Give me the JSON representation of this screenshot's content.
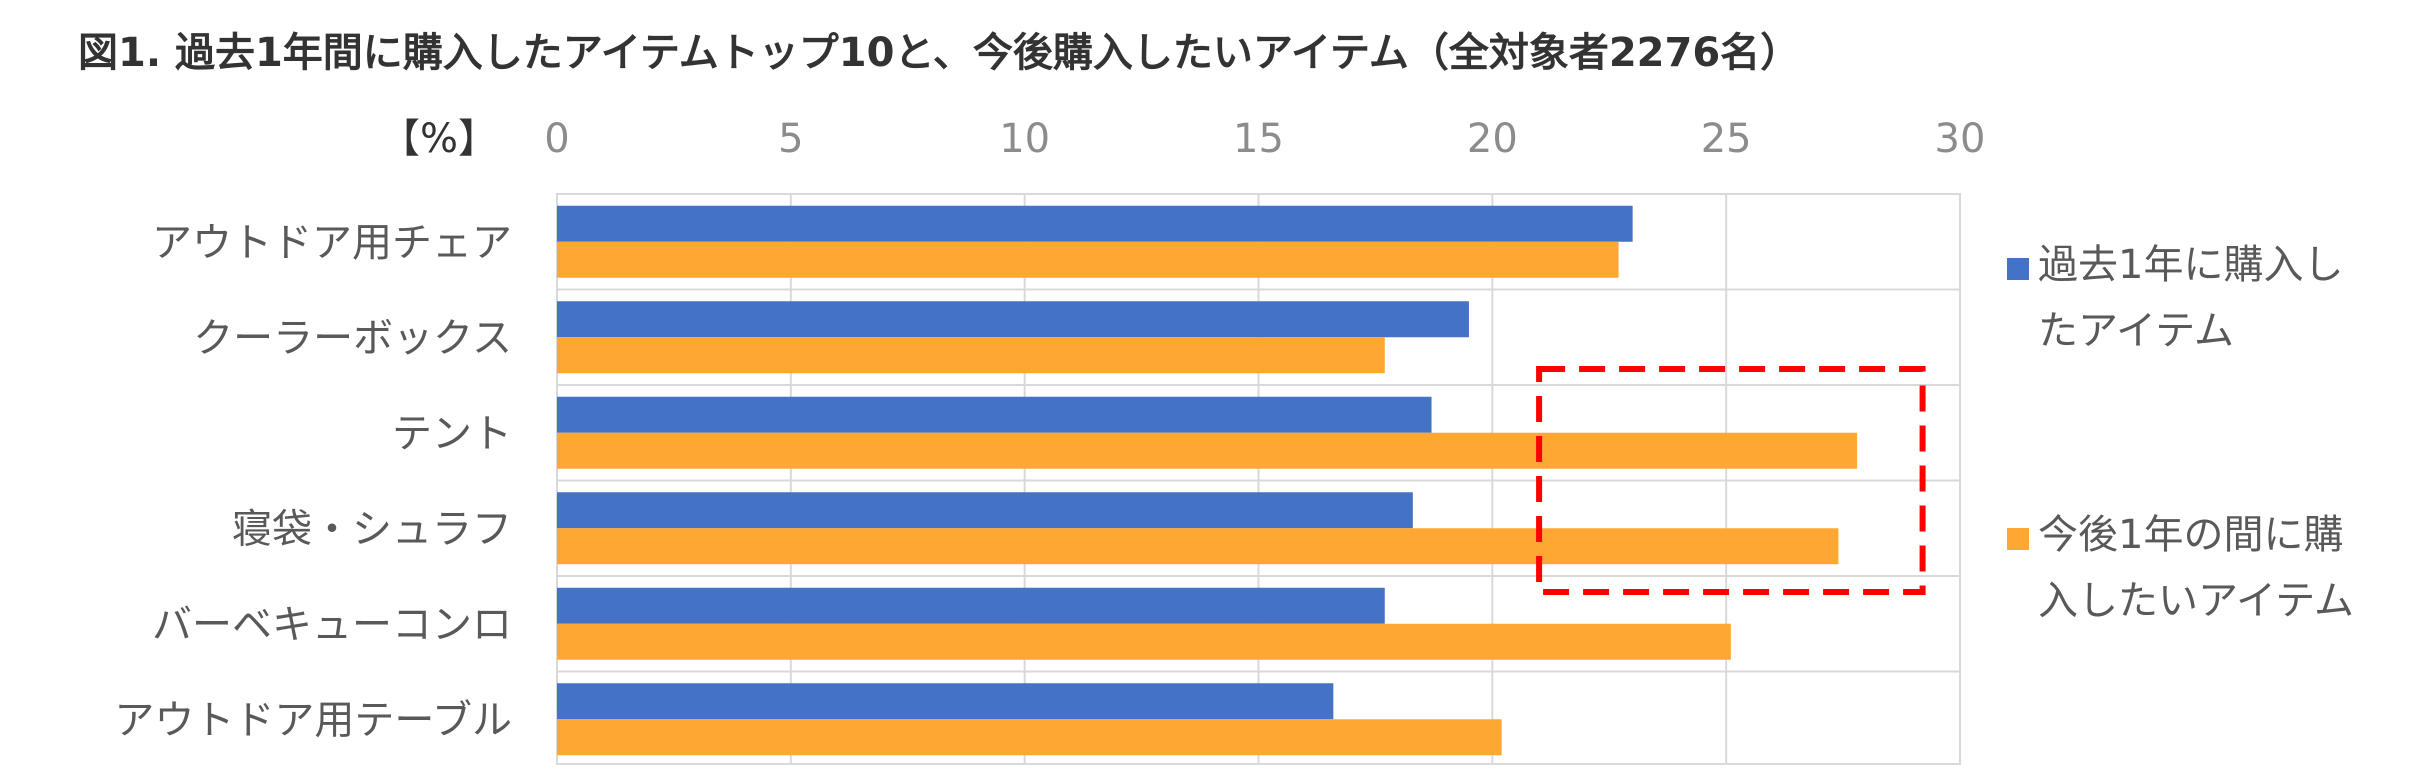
{
  "title": "図1. 過去1年間に購入したアイテムトップ10と、今後購入したいアイテム（全対象者2276名）",
  "chart_data": {
    "type": "bar",
    "orientation": "horizontal",
    "categories": [
      "アウトドア用チェア",
      "クーラーボックス",
      "テント",
      "寝袋・シュラフ",
      "バーベキューコンロ",
      "アウトドア用テーブル"
    ],
    "series": [
      {
        "name": "過去1年に購入したアイテム",
        "values": [
          23.0,
          19.5,
          18.7,
          18.3,
          17.7,
          16.6
        ],
        "color": "#4472C4"
      },
      {
        "name": "今後1年の間に購入したいアイテム",
        "values": [
          22.7,
          17.7,
          27.8,
          27.4,
          25.1,
          20.2
        ],
        "color": "#FFA733"
      }
    ],
    "unit_label": "【%】",
    "xlim": [
      0,
      30
    ],
    "ticks": [
      0,
      5,
      10,
      15,
      20,
      25,
      30
    ],
    "grid": true,
    "legend_position": "right",
    "highlight": {
      "categories": [
        "テント",
        "寝袋・シュラフ"
      ],
      "x_range": [
        21,
        29.2
      ],
      "color": "#FF0000",
      "style": "dashed"
    }
  }
}
